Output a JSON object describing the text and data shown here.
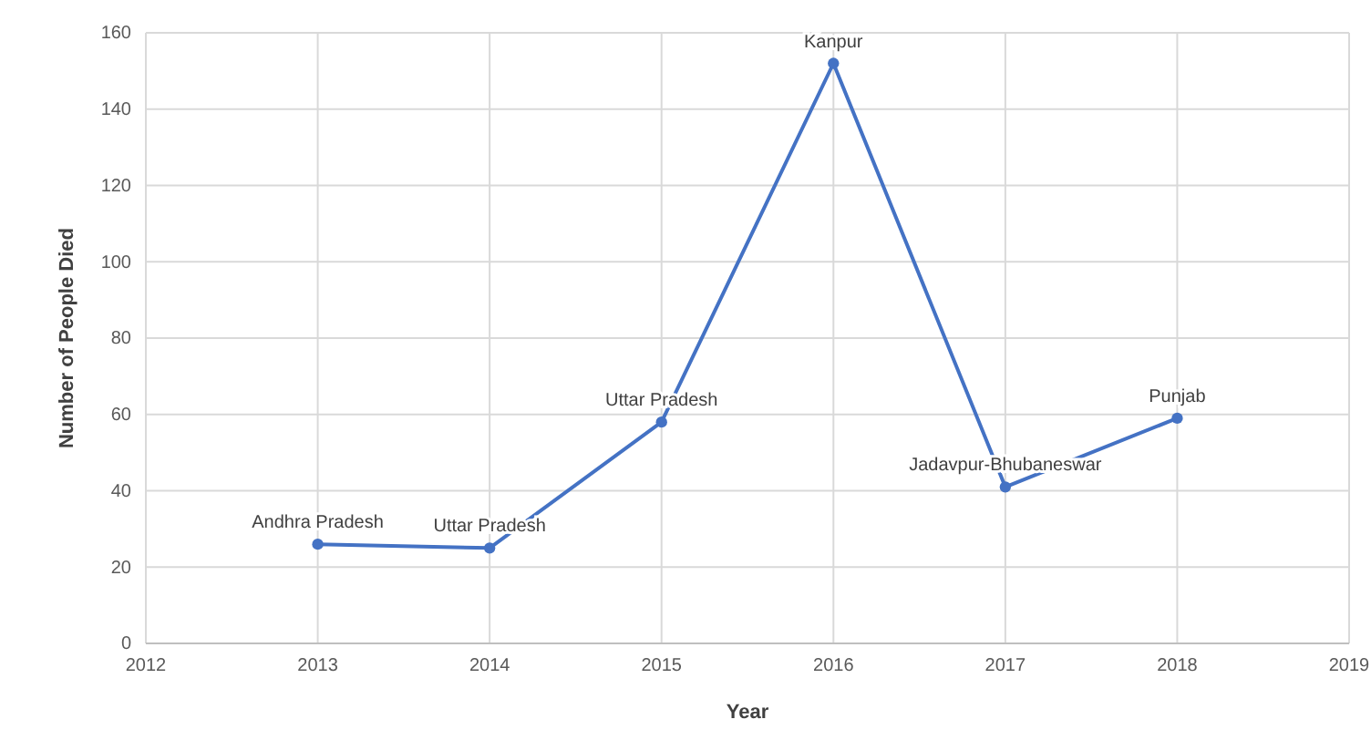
{
  "chart_data": {
    "type": "line",
    "xlabel": "Year",
    "ylabel": "Number of People Died",
    "x": [
      2013,
      2014,
      2015,
      2016,
      2017,
      2018
    ],
    "series": [
      {
        "color": "#4472c4",
        "values": [
          26,
          25,
          58,
          152,
          41,
          59
        ]
      }
    ],
    "xlim": [
      2012,
      2019
    ],
    "xticks": [
      2012,
      2013,
      2014,
      2015,
      2016,
      2017,
      2018,
      2019
    ],
    "ylim": [
      0,
      160
    ],
    "yticks": [
      0,
      20,
      40,
      60,
      80,
      100,
      120,
      140,
      160
    ],
    "grid": true,
    "marker": "circle",
    "line_style": "solid",
    "annotations": [
      {
        "text": "Andhra Pradesh",
        "x": 2013,
        "y": 26
      },
      {
        "text": "Uttar Pradesh",
        "x": 2014,
        "y": 25
      },
      {
        "text": "Uttar Pradesh",
        "x": 2015,
        "y": 58
      },
      {
        "text": "Kanpur",
        "x": 2016,
        "y": 152
      },
      {
        "text": "Jadavpur-Bhubaneswar",
        "x": 2017,
        "y": 41
      },
      {
        "text": "Punjab",
        "x": 2018,
        "y": 59
      }
    ]
  }
}
